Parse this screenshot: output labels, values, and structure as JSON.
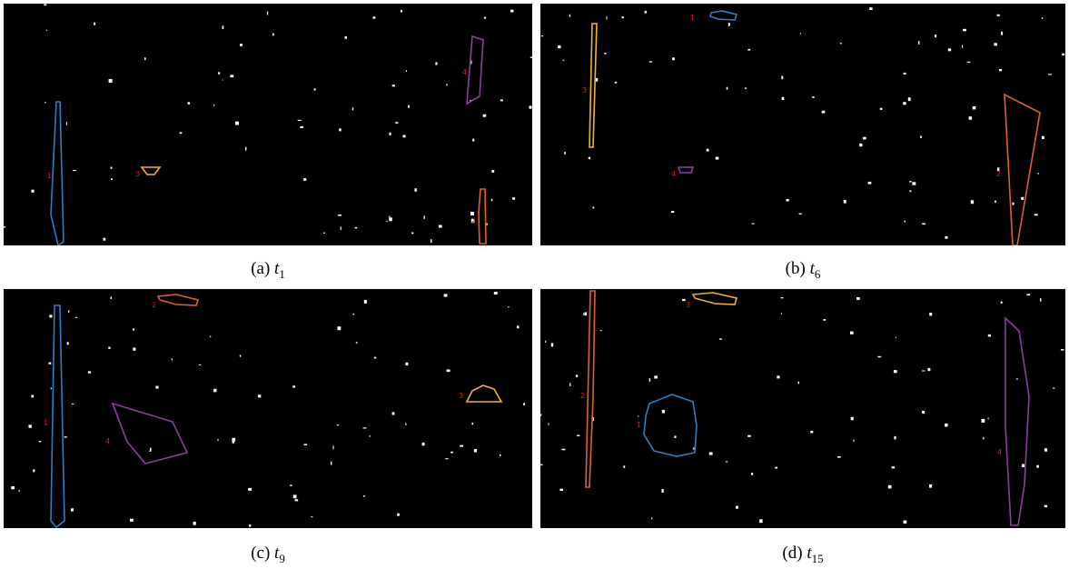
{
  "panels": [
    {
      "caption": "(a)",
      "variable": "t",
      "subscript": "1",
      "regions": [
        {
          "label": "1"
        },
        {
          "label": "2"
        },
        {
          "label": "3"
        },
        {
          "label": "4"
        }
      ]
    },
    {
      "caption": "(b)",
      "variable": "t",
      "subscript": "6",
      "regions": [
        {
          "label": "1"
        },
        {
          "label": "2"
        },
        {
          "label": "3"
        },
        {
          "label": "4"
        }
      ]
    },
    {
      "caption": "(c)",
      "variable": "t",
      "subscript": "9",
      "regions": [
        {
          "label": "1"
        },
        {
          "label": "2"
        },
        {
          "label": "3"
        },
        {
          "label": "4"
        }
      ]
    },
    {
      "caption": "(d)",
      "variable": "t",
      "subscript": "15",
      "regions": [
        {
          "label": "1"
        },
        {
          "label": "2"
        },
        {
          "label": "3"
        },
        {
          "label": "4"
        }
      ]
    }
  ]
}
